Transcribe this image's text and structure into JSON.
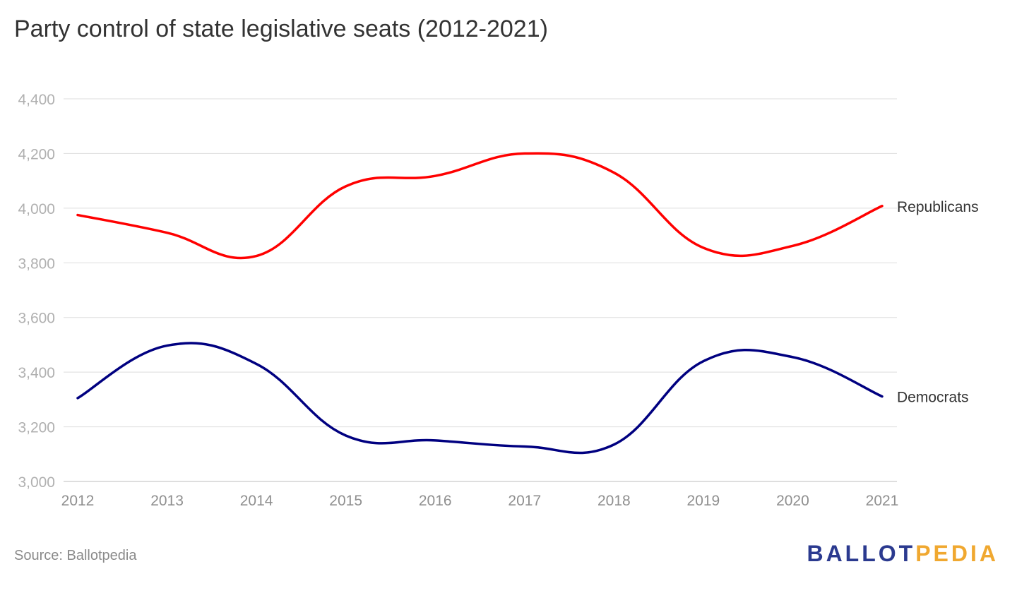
{
  "chart_data": {
    "type": "line",
    "title": "Party control of state legislative seats (2012-2021)",
    "xlabel": "",
    "ylabel": "",
    "x": [
      2012,
      2013,
      2014,
      2015,
      2016,
      2017,
      2018,
      2019,
      2020,
      2021
    ],
    "x_tick_labels": [
      "2012",
      "2013",
      "2014",
      "2015",
      "2016",
      "2017",
      "2018",
      "2019",
      "2020",
      "2021"
    ],
    "y_tick_labels": [
      "4,400",
      "4,200",
      "4,000",
      "3,800",
      "3,600",
      "3,400",
      "3,200",
      "3,000"
    ],
    "y_ticks": [
      4400,
      4200,
      4000,
      3800,
      3600,
      3400,
      3200,
      3000
    ],
    "ylim": [
      3000,
      4400
    ],
    "grid": true,
    "legend": "direct labels at line ends",
    "series": [
      {
        "name": "Republicans",
        "color": "#ff0000",
        "values": [
          3975,
          3910,
          3825,
          4080,
          4118,
          4200,
          4130,
          3855,
          3862,
          4008
        ]
      },
      {
        "name": "Democrats",
        "color": "#000080",
        "values": [
          3305,
          3497,
          3430,
          3168,
          3150,
          3128,
          3135,
          3440,
          3455,
          3311
        ]
      }
    ]
  },
  "source": "Source: Ballotpedia",
  "logo": {
    "part1": "BALLOT",
    "part2": "PEDIA"
  },
  "colors": {
    "grid": "#dddddd",
    "tick_text": "#9e9e9e",
    "y_tick_text": "#b0b0b0"
  }
}
